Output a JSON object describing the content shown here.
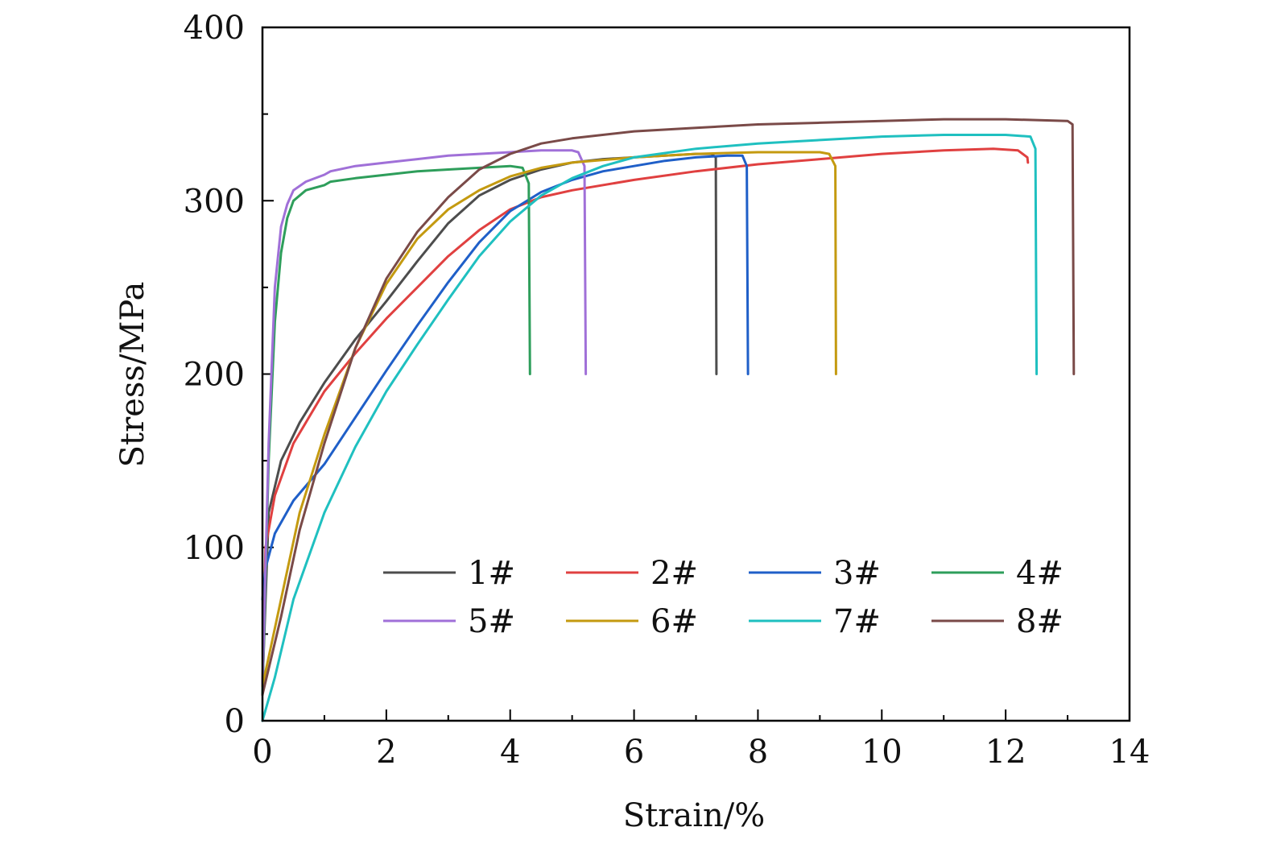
{
  "chart_data": {
    "type": "line",
    "title": "",
    "xlabel": "Strain/%",
    "ylabel": "Stress/MPa",
    "xlim": [
      0,
      14
    ],
    "ylim": [
      0,
      400
    ],
    "xticks": [
      0,
      2,
      4,
      6,
      8,
      10,
      12,
      14
    ],
    "yticks": [
      0,
      100,
      200,
      300,
      400
    ],
    "xtick_labels": [
      "0",
      "2",
      "4",
      "6",
      "8",
      "10",
      "12",
      "14"
    ],
    "ytick_labels": [
      "0",
      "100",
      "200",
      "300",
      "400"
    ],
    "grid": false,
    "legend_position": "lower-right",
    "series": [
      {
        "name": "1#",
        "color": "#4d4d4d",
        "points": [
          [
            0,
            20
          ],
          [
            0.1,
            120
          ],
          [
            0.3,
            150
          ],
          [
            0.6,
            172
          ],
          [
            1.0,
            195
          ],
          [
            1.5,
            220
          ],
          [
            2.0,
            242
          ],
          [
            2.5,
            265
          ],
          [
            3.0,
            287
          ],
          [
            3.5,
            303
          ],
          [
            4.0,
            312
          ],
          [
            4.5,
            318
          ],
          [
            5.0,
            322
          ],
          [
            5.5,
            324
          ],
          [
            6.0,
            325
          ],
          [
            6.5,
            326
          ],
          [
            7.0,
            327
          ],
          [
            7.25,
            327
          ],
          [
            7.32,
            325
          ],
          [
            7.33,
            200
          ]
        ]
      },
      {
        "name": "2#",
        "color": "#e04040",
        "points": [
          [
            0,
            20
          ],
          [
            0.05,
            100
          ],
          [
            0.2,
            130
          ],
          [
            0.5,
            160
          ],
          [
            1.0,
            190
          ],
          [
            1.5,
            212
          ],
          [
            2.0,
            232
          ],
          [
            2.5,
            250
          ],
          [
            3.0,
            268
          ],
          [
            3.5,
            283
          ],
          [
            4.0,
            295
          ],
          [
            4.5,
            302
          ],
          [
            5.0,
            306
          ],
          [
            6.0,
            312
          ],
          [
            7.0,
            317
          ],
          [
            8.0,
            321
          ],
          [
            9.0,
            324
          ],
          [
            10.0,
            327
          ],
          [
            11.0,
            329
          ],
          [
            11.8,
            330
          ],
          [
            12.2,
            329
          ],
          [
            12.35,
            325
          ],
          [
            12.36,
            322
          ]
        ]
      },
      {
        "name": "3#",
        "color": "#1f5fc8",
        "points": [
          [
            0,
            70
          ],
          [
            0.05,
            88
          ],
          [
            0.2,
            108
          ],
          [
            0.5,
            127
          ],
          [
            1.0,
            148
          ],
          [
            1.5,
            175
          ],
          [
            2.0,
            202
          ],
          [
            2.5,
            228
          ],
          [
            3.0,
            253
          ],
          [
            3.5,
            276
          ],
          [
            4.0,
            294
          ],
          [
            4.5,
            305
          ],
          [
            5.0,
            312
          ],
          [
            5.5,
            317
          ],
          [
            6.0,
            320
          ],
          [
            6.5,
            323
          ],
          [
            7.0,
            325
          ],
          [
            7.5,
            326
          ],
          [
            7.75,
            326
          ],
          [
            7.82,
            320
          ],
          [
            7.84,
            200
          ]
        ]
      },
      {
        "name": "4#",
        "color": "#2e9e5b",
        "points": [
          [
            0,
            15
          ],
          [
            0.1,
            150
          ],
          [
            0.2,
            230
          ],
          [
            0.3,
            270
          ],
          [
            0.4,
            290
          ],
          [
            0.5,
            300
          ],
          [
            0.7,
            306
          ],
          [
            1.0,
            309
          ],
          [
            1.1,
            311
          ],
          [
            1.5,
            313
          ],
          [
            2.0,
            315
          ],
          [
            2.5,
            317
          ],
          [
            3.0,
            318
          ],
          [
            3.5,
            319
          ],
          [
            4.0,
            320
          ],
          [
            4.2,
            319
          ],
          [
            4.3,
            310
          ],
          [
            4.32,
            200
          ]
        ]
      },
      {
        "name": "5#",
        "color": "#a070d8",
        "points": [
          [
            0,
            20
          ],
          [
            0.1,
            160
          ],
          [
            0.2,
            250
          ],
          [
            0.3,
            285
          ],
          [
            0.4,
            298
          ],
          [
            0.5,
            306
          ],
          [
            0.7,
            311
          ],
          [
            1.0,
            315
          ],
          [
            1.1,
            317
          ],
          [
            1.5,
            320
          ],
          [
            2.0,
            322
          ],
          [
            2.5,
            324
          ],
          [
            3.0,
            326
          ],
          [
            3.5,
            327
          ],
          [
            4.0,
            328
          ],
          [
            4.5,
            329
          ],
          [
            5.0,
            329
          ],
          [
            5.1,
            328
          ],
          [
            5.2,
            320
          ],
          [
            5.22,
            200
          ]
        ]
      },
      {
        "name": "6#",
        "color": "#c49a10",
        "points": [
          [
            0,
            20
          ],
          [
            0.3,
            70
          ],
          [
            0.6,
            120
          ],
          [
            1.0,
            165
          ],
          [
            1.5,
            215
          ],
          [
            2.0,
            252
          ],
          [
            2.5,
            278
          ],
          [
            3.0,
            295
          ],
          [
            3.5,
            306
          ],
          [
            4.0,
            314
          ],
          [
            4.5,
            319
          ],
          [
            5.0,
            322
          ],
          [
            6.0,
            325
          ],
          [
            7.0,
            327
          ],
          [
            8.0,
            328
          ],
          [
            9.0,
            328
          ],
          [
            9.15,
            327
          ],
          [
            9.25,
            320
          ],
          [
            9.26,
            200
          ]
        ]
      },
      {
        "name": "7#",
        "color": "#1fc0c0",
        "points": [
          [
            0,
            0
          ],
          [
            0.2,
            25
          ],
          [
            0.5,
            70
          ],
          [
            1.0,
            120
          ],
          [
            1.5,
            158
          ],
          [
            2.0,
            190
          ],
          [
            2.5,
            217
          ],
          [
            3.0,
            243
          ],
          [
            3.5,
            268
          ],
          [
            4.0,
            288
          ],
          [
            4.5,
            303
          ],
          [
            5.0,
            313
          ],
          [
            5.5,
            320
          ],
          [
            6.0,
            325
          ],
          [
            7.0,
            330
          ],
          [
            8.0,
            333
          ],
          [
            9.0,
            335
          ],
          [
            10.0,
            337
          ],
          [
            11.0,
            338
          ],
          [
            12.0,
            338
          ],
          [
            12.4,
            337
          ],
          [
            12.48,
            330
          ],
          [
            12.5,
            200
          ]
        ]
      },
      {
        "name": "8#",
        "color": "#7a4a48",
        "points": [
          [
            0,
            15
          ],
          [
            0.3,
            60
          ],
          [
            0.6,
            110
          ],
          [
            1.0,
            160
          ],
          [
            1.5,
            215
          ],
          [
            2.0,
            255
          ],
          [
            2.5,
            282
          ],
          [
            3.0,
            302
          ],
          [
            3.5,
            318
          ],
          [
            4.0,
            327
          ],
          [
            4.5,
            333
          ],
          [
            5.0,
            336
          ],
          [
            6.0,
            340
          ],
          [
            7.0,
            342
          ],
          [
            8.0,
            344
          ],
          [
            9.0,
            345
          ],
          [
            10.0,
            346
          ],
          [
            11.0,
            347
          ],
          [
            12.0,
            347
          ],
          [
            13.0,
            346
          ],
          [
            13.08,
            344
          ],
          [
            13.1,
            200
          ]
        ]
      }
    ]
  }
}
